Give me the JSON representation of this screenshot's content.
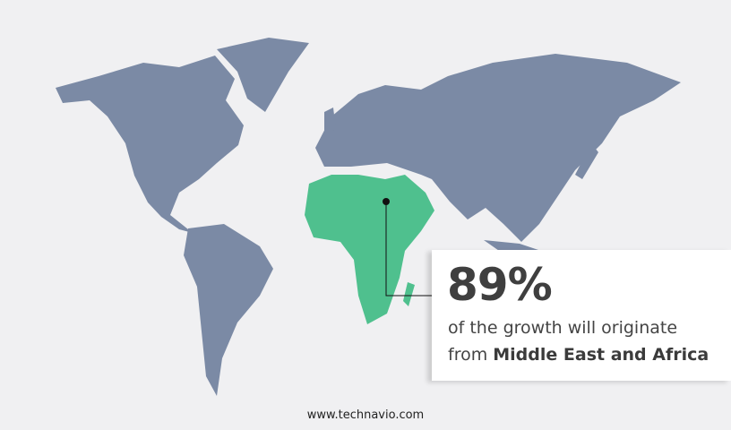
{
  "colors": {
    "background": "#f0f0f2",
    "map": "#7b8aa5",
    "highlight": "#4fc08e",
    "text": "#3f3f3f"
  },
  "highlighted_region": "Middle East and Africa",
  "callout": {
    "value": "89%",
    "text_line1": "of the growth will originate",
    "text_prefix": "from",
    "region": "Middle East and Africa"
  },
  "footer": {
    "url": "www.technavio.com"
  }
}
